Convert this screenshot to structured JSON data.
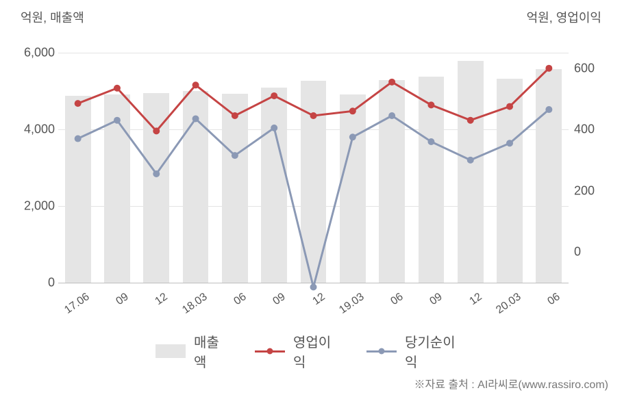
{
  "chart": {
    "type": "combo-bar-line",
    "left_axis_label": "억원, 매출액",
    "right_axis_label": "억원, 영업이익",
    "background_color": "#ffffff",
    "grid_color": "#e3e3e3",
    "axis_line_color": "#bfbfbf",
    "text_color": "#555555",
    "categories": [
      "17.06",
      "09",
      "12",
      "18.03",
      "06",
      "09",
      "12",
      "19.03",
      "06",
      "09",
      "12",
      "20.03",
      "06"
    ],
    "left_axis": {
      "min": -400,
      "max": 6400,
      "ticks": [
        0,
        2000,
        4000,
        6000
      ],
      "tick_labels": [
        "0",
        "2,000",
        "4,000",
        "6,000"
      ]
    },
    "right_axis": {
      "min": -150,
      "max": 700,
      "ticks": [
        0,
        200,
        400,
        600
      ],
      "tick_labels": [
        "0",
        "200",
        "400",
        "600"
      ]
    },
    "bars": {
      "name": "매출액",
      "color": "#e5e5e5",
      "values": [
        4880,
        4920,
        4950,
        5000,
        4930,
        5100,
        5280,
        4920,
        5290,
        5380,
        5800,
        5330,
        5580
      ],
      "width_ratio": 0.66
    },
    "line1": {
      "name": "영업이익",
      "color": "#c54444",
      "line_width": 3,
      "marker_size": 5,
      "values": [
        485,
        535,
        395,
        545,
        445,
        510,
        445,
        460,
        555,
        480,
        430,
        475,
        600
      ]
    },
    "line2": {
      "name": "당기순이익",
      "color": "#8b99b5",
      "line_width": 3,
      "marker_size": 5,
      "values": [
        370,
        430,
        255,
        435,
        315,
        405,
        -115,
        375,
        445,
        360,
        300,
        355,
        465
      ]
    },
    "legend_items": [
      {
        "label": "매출액",
        "type": "bar",
        "color": "#e5e5e5"
      },
      {
        "label": "영업이익",
        "type": "line",
        "color": "#c54444"
      },
      {
        "label": "당기순이익",
        "type": "line",
        "color": "#8b99b5"
      }
    ],
    "source_note": "※자료 출처 : AI라씨로(www.rassiro.com)"
  }
}
